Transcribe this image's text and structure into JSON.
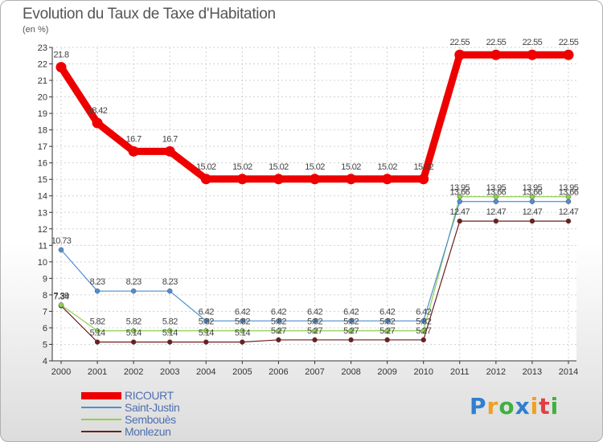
{
  "chart_data": {
    "type": "line",
    "title": "Evolution du Taux de Taxe d'Habitation",
    "subtitle": "(en %)",
    "xlabel": "",
    "ylabel": "",
    "ylim": [
      4,
      23
    ],
    "yticks": [
      4,
      5,
      6,
      7,
      8,
      9,
      10,
      11,
      12,
      13,
      14,
      15,
      16,
      17,
      18,
      19,
      20,
      21,
      22,
      23
    ],
    "categories": [
      "2000",
      "2001",
      "2002",
      "2003",
      "2004",
      "2005",
      "2006",
      "2007",
      "2008",
      "2009",
      "2010",
      "2011",
      "2012",
      "2013",
      "2014"
    ],
    "series": [
      {
        "name": "RICOURT",
        "color": "#ee0000",
        "values": [
          21.8,
          18.42,
          16.7,
          16.7,
          15.02,
          15.02,
          15.02,
          15.02,
          15.02,
          15.02,
          15.02,
          22.55,
          22.55,
          22.55,
          22.55
        ],
        "labels": [
          "21.8",
          "18.42",
          "16.7",
          "16.7",
          "15.02",
          "15.02",
          "15.02",
          "15.02",
          "15.02",
          "15.02",
          "15.02",
          "22.55",
          "22.55",
          "22.55",
          "22.55"
        ]
      },
      {
        "name": "Saint-Justin",
        "color": "#4f8fd0",
        "values": [
          10.73,
          8.23,
          8.23,
          8.23,
          6.42,
          6.42,
          6.42,
          6.42,
          6.42,
          6.42,
          6.42,
          13.66,
          13.66,
          13.66,
          13.66
        ],
        "labels": [
          "10.73",
          "8.23",
          "8.23",
          "8.23",
          "6.42",
          "6.42",
          "6.42",
          "6.42",
          "6.42",
          "6.42",
          "6.42",
          "13.66",
          "13.66",
          "13.66",
          "13.66"
        ]
      },
      {
        "name": "Sembouès",
        "color": "#8fd050",
        "values": [
          7.39,
          5.82,
          5.82,
          5.82,
          5.82,
          5.82,
          5.82,
          5.82,
          5.82,
          5.82,
          5.82,
          13.95,
          13.95,
          13.95,
          13.95
        ],
        "labels": [
          "7.39",
          "5.82",
          "5.82",
          "5.82",
          "5.82",
          "5.82",
          "5.82",
          "5.82",
          "5.82",
          "5.82",
          "5.82",
          "13.95",
          "13.95",
          "13.95",
          "13.95"
        ]
      },
      {
        "name": "Monlezun",
        "color": "#6e1e1e",
        "values": [
          7.34,
          5.14,
          5.14,
          5.14,
          5.14,
          5.14,
          5.27,
          5.27,
          5.27,
          5.27,
          5.27,
          12.47,
          12.47,
          12.47,
          12.47
        ],
        "labels": [
          "7.34",
          "5.14",
          "5.14",
          "5.14",
          "5.14",
          "5.14",
          "5.27",
          "5.27",
          "5.27",
          "5.27",
          "5.27",
          "12.47",
          "12.47",
          "12.47",
          "12.47"
        ]
      }
    ]
  },
  "brand": {
    "text": "Proxiti",
    "letters": [
      {
        "ch": "P",
        "color": "#2f7fd0"
      },
      {
        "ch": "r",
        "color": "#f0a020"
      },
      {
        "ch": "o",
        "color": "#40b040"
      },
      {
        "ch": "x",
        "color": "#2f7fd0"
      },
      {
        "ch": "i",
        "color": "#f0a020"
      },
      {
        "ch": "t",
        "color": "#e04040"
      },
      {
        "ch": "i",
        "color": "#40b040"
      }
    ]
  }
}
